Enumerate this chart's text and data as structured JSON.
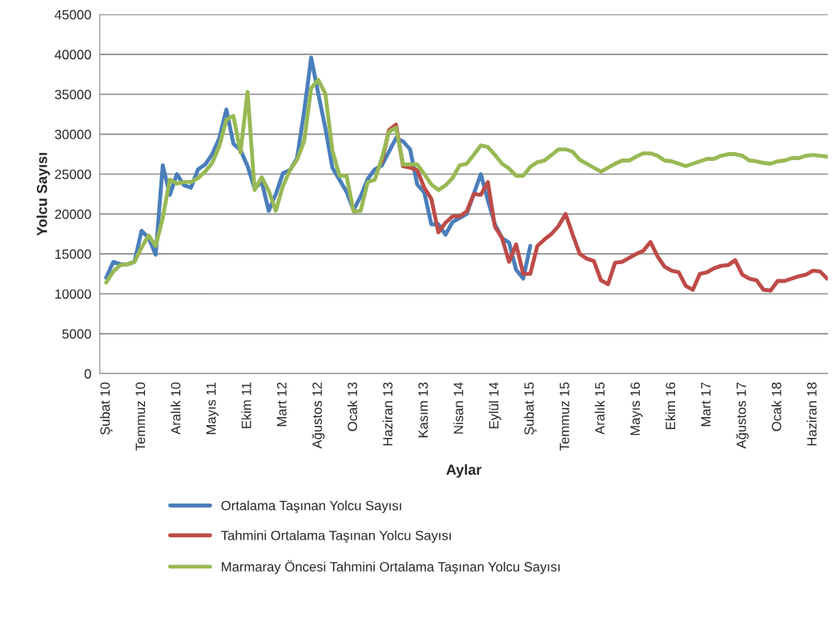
{
  "chart_data": {
    "type": "line",
    "xlabel": "Aylar",
    "ylabel": "Yolcu Sayısı",
    "categories": [
      "Şubat 10",
      null,
      null,
      null,
      null,
      "Temmuz 10",
      null,
      null,
      null,
      null,
      "Aralık 10",
      null,
      null,
      null,
      null,
      "Mayıs 11",
      null,
      null,
      null,
      null,
      "Ekim 11",
      null,
      null,
      null,
      null,
      "Mart 12",
      null,
      null,
      null,
      null,
      "Ağustos 12",
      null,
      null,
      null,
      null,
      "Ocak 13",
      null,
      null,
      null,
      null,
      "Haziran 13",
      null,
      null,
      null,
      null,
      "Kasım 13",
      null,
      null,
      null,
      null,
      "Nisan 14",
      null,
      null,
      null,
      null,
      "Eylül 14",
      null,
      null,
      null,
      null,
      "Şubat 15",
      null,
      null,
      null,
      null,
      "Temmuz 15",
      null,
      null,
      null,
      null,
      "Aralık 15",
      null,
      null,
      null,
      null,
      "Mayıs 16",
      null,
      null,
      null,
      null,
      "Ekim 16",
      null,
      null,
      null,
      null,
      "Mart 17",
      null,
      null,
      null,
      null,
      "Ağustos 17",
      null,
      null,
      null,
      null,
      "Ocak 18",
      null,
      null,
      null,
      null,
      "Haziran 18",
      null,
      null
    ],
    "series": [
      {
        "name": "Ortalama Taşınan Yolcu Sayısı",
        "color": "#4a7ebb",
        "values": [
          12000,
          14000,
          13700,
          13700,
          14000,
          17900,
          17000,
          14900,
          26100,
          22400,
          25000,
          23600,
          23300,
          25600,
          26200,
          27500,
          29500,
          33100,
          28800,
          28000,
          26000,
          23200,
          24000,
          20400,
          22500,
          25100,
          25500,
          27000,
          32800,
          39600,
          35100,
          30800,
          25800,
          24300,
          22800,
          20500,
          22200,
          24400,
          25600,
          26100,
          27800,
          29500,
          29100,
          28100,
          23700,
          22700,
          18700,
          18700,
          17400,
          19000,
          19500,
          20000,
          22500,
          25000,
          21700,
          18700,
          17000,
          16400,
          13000,
          11900,
          16000,
          null,
          null,
          null,
          null,
          null,
          null,
          null,
          null,
          null,
          null,
          null,
          null,
          null,
          null,
          null,
          null,
          null,
          null,
          null,
          null,
          null,
          null,
          null,
          null,
          null,
          null,
          null,
          null,
          null,
          null,
          null,
          null,
          null,
          null,
          null,
          null,
          null,
          null,
          null,
          null,
          null,
          null
        ]
      },
      {
        "name": "Tahmini Ortalama Taşınan Yolcu Sayısı",
        "color": "#be4b48",
        "values": [
          null,
          null,
          null,
          null,
          null,
          null,
          null,
          null,
          null,
          null,
          null,
          null,
          null,
          null,
          null,
          null,
          null,
          null,
          null,
          null,
          null,
          null,
          null,
          null,
          null,
          null,
          null,
          null,
          null,
          null,
          null,
          null,
          null,
          null,
          null,
          null,
          null,
          null,
          null,
          26500,
          30500,
          31200,
          26000,
          25800,
          25500,
          23300,
          21900,
          17700,
          18900,
          19700,
          19700,
          20300,
          22500,
          22400,
          24000,
          18400,
          17000,
          14000,
          16200,
          12500,
          12500,
          16000,
          16800,
          17500,
          18500,
          20000,
          17400,
          15000,
          14400,
          14100,
          11700,
          11200,
          13900,
          14000,
          14500,
          15000,
          15400,
          16500,
          14700,
          13400,
          12900,
          12700,
          11000,
          10500,
          12500,
          12700,
          13200,
          13500,
          13600,
          14200,
          12400,
          11900,
          11700,
          10500,
          10400,
          11600,
          11600,
          11900,
          12200,
          12400,
          12900,
          12800,
          11900
        ]
      },
      {
        "name": "Marmaray Öncesi Tahmini Ortalama Taşınan Yolcu Sayısı",
        "color": "#98b954",
        "values": [
          11400,
          12800,
          13600,
          13700,
          14000,
          15800,
          17300,
          16000,
          19500,
          24300,
          23800,
          24000,
          24000,
          24500,
          25300,
          26400,
          28500,
          31800,
          32300,
          27700,
          35300,
          23000,
          24600,
          22900,
          20400,
          23500,
          25500,
          26800,
          29100,
          35800,
          36800,
          35100,
          28000,
          24800,
          24800,
          20300,
          20400,
          24000,
          24300,
          27000,
          30300,
          30800,
          26200,
          26200,
          26200,
          25000,
          23700,
          23000,
          23600,
          24500,
          26100,
          26300,
          27400,
          28600,
          28400,
          27400,
          26300,
          25700,
          24800,
          24800,
          25900,
          26500,
          26700,
          27400,
          28100,
          28100,
          27800,
          26800,
          26300,
          25800,
          25300,
          25800,
          26300,
          26700,
          26700,
          27200,
          27600,
          27600,
          27300,
          26700,
          26600,
          26300,
          26000,
          26300,
          26600,
          26900,
          26900,
          27300,
          27500,
          27500,
          27300,
          26700,
          26600,
          26400,
          26300,
          26600,
          26700,
          27000,
          27000,
          27300,
          27400,
          27300,
          27200
        ]
      }
    ],
    "ylim": [
      0,
      45000
    ],
    "yticks": [
      0,
      5000,
      10000,
      15000,
      20000,
      25000,
      30000,
      35000,
      40000,
      45000
    ],
    "grid": "y",
    "legend": "bottom",
    "marker": "none",
    "line_style": "solid"
  }
}
